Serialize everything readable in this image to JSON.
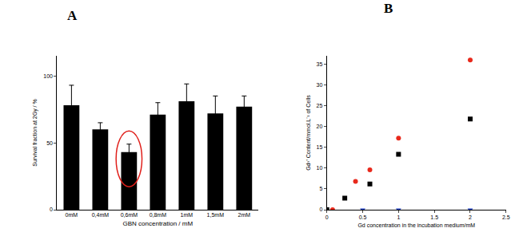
{
  "chart_data": [
    {
      "type": "bar",
      "title": "A",
      "categories": [
        "0mM",
        "0,4mM",
        "0,6mM",
        "0,8mM",
        "1mM",
        "1,5mM",
        "2mM"
      ],
      "values": [
        78,
        60,
        43,
        71,
        81,
        72,
        77
      ],
      "error": [
        15,
        5,
        6,
        9,
        13,
        13,
        8
      ],
      "color": "#000000",
      "xlabel": "GBN concentration / mM",
      "ylabel": "Survival fraction at 2Gy / %",
      "ylim": [
        0,
        115
      ],
      "yticks": [
        0,
        50,
        100
      ],
      "grid": false
    },
    {
      "type": "scatter",
      "title": "B",
      "xlabel": "Gd concentration in the incubation medium/mM",
      "ylabel": "Gd³⁺ Content/mmol.L⁻¹ of Cells",
      "xlim": [
        0,
        2.5
      ],
      "xticks": [
        0,
        0.5,
        1,
        1.5,
        2,
        2.5
      ],
      "ylim": [
        0,
        37
      ],
      "yticks": [
        0,
        5,
        10,
        15,
        20,
        25,
        30,
        35
      ],
      "grid": false,
      "series": [
        {
          "color": "#e8291c",
          "marker": "circle",
          "x": [
            0.08,
            0.4,
            0.6,
            1,
            2
          ],
          "values": [
            0,
            6.8,
            9.6,
            17.2,
            36
          ]
        },
        {
          "color": "#000000",
          "marker": "square",
          "x": [
            0,
            0.25,
            0.6,
            1,
            2
          ],
          "values": [
            0,
            2.8,
            6.2,
            13.3,
            21.8
          ]
        },
        {
          "color": "#1f3fbf",
          "marker": "triangle-down",
          "x": [
            0.5,
            1,
            2
          ],
          "values": [
            0,
            0,
            0
          ]
        }
      ]
    }
  ]
}
